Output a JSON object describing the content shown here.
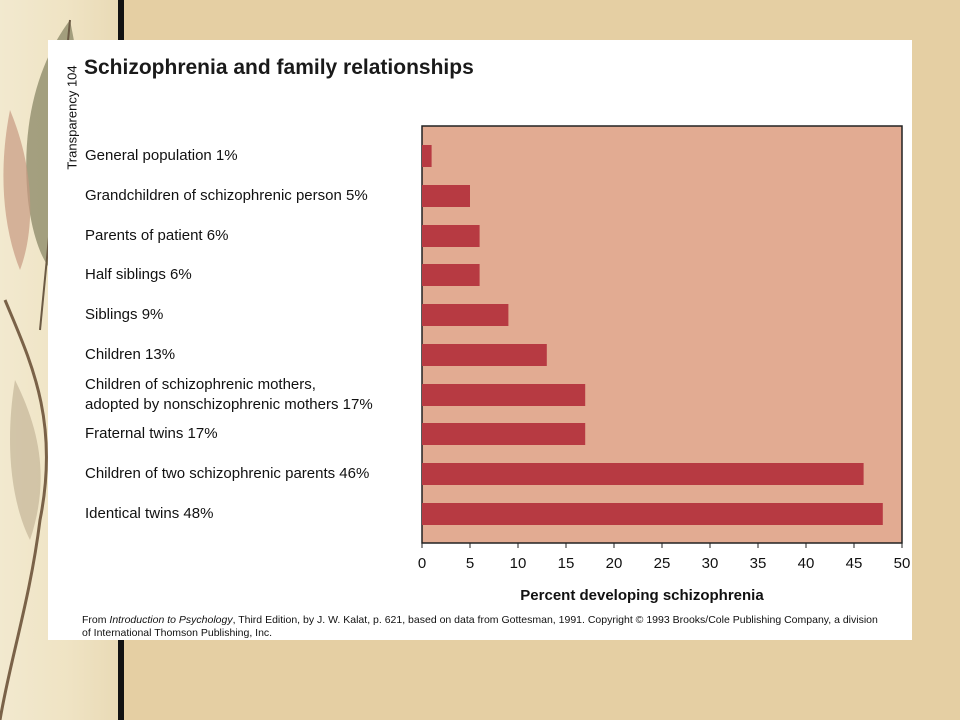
{
  "slide": {
    "side_label": "Transparency 104",
    "source_prefix": "From ",
    "source_book": "Introduction to Psychology",
    "source_line1_rest": ", Third Edition, by J. W. Kalat, p. 621, based on data from Gottesman, 1991. Copyright © 1993 Brooks/Cole Publishing Company, a division",
    "source_line2": "of International Thomson Publishing, Inc."
  },
  "chart_data": {
    "type": "bar",
    "orientation": "horizontal",
    "title": "Schizophrenia and family relationships",
    "xlabel": "Percent developing schizophrenia",
    "xlim": [
      0,
      50
    ],
    "xticks": [
      0,
      5,
      10,
      15,
      20,
      25,
      30,
      35,
      40,
      45,
      50
    ],
    "grid": false,
    "categories": [
      "General population 1%",
      "Grandchildren of schizophrenic person 5%",
      "Parents of patient 6%",
      "Half siblings 6%",
      "Siblings 9%",
      "Children 13%",
      "Children of schizophrenic mothers,\nadopted by nonschizophrenic mothers 17%",
      "Fraternal twins 17%",
      "Children of two schizophrenic parents 46%",
      "Identical twins 48%"
    ],
    "values": [
      1,
      5,
      6,
      6,
      9,
      13,
      17,
      17,
      46,
      48
    ],
    "colors": {
      "bar": "#b73a42",
      "plot_bg": "#e2ab92",
      "frame": "#222222"
    }
  }
}
